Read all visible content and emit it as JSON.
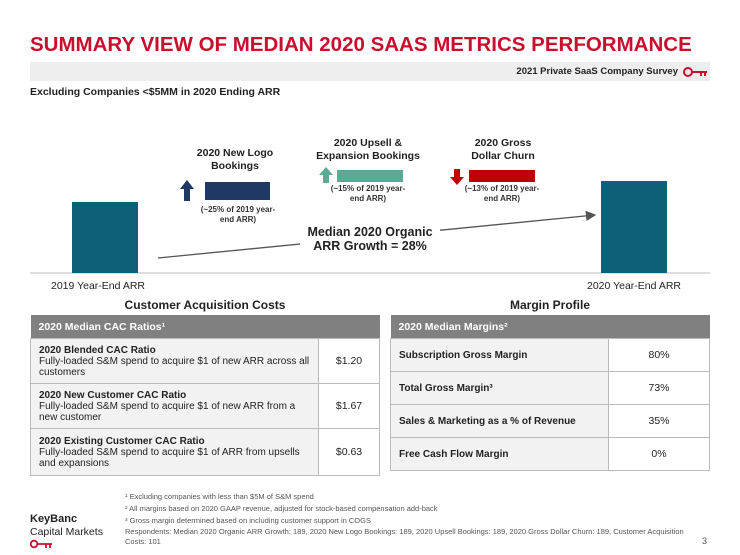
{
  "header": {
    "title": "SUMMARY VIEW OF MEDIAN 2020 SAAS METRICS PERFORMANCE",
    "survey": "2021 Private SaaS Company Survey",
    "subtitle": "Excluding Companies <$5MM in 2020 Ending ARR"
  },
  "bridge": {
    "start_label": "2019 Year-End ARR",
    "end_label": "2020 Year-End ARR",
    "segments": [
      {
        "title": "2020 New Logo Bookings",
        "note": "(~25% of 2019 year-end ARR)"
      },
      {
        "title": "2020 Upsell & Expansion Bookings",
        "note": "(~15% of 2019 year-end ARR)"
      },
      {
        "title": "2020 Gross Dollar Churn",
        "note": "(~13% of 2019 year-end ARR)"
      }
    ],
    "growth_label": "Median 2020 Organic ARR Growth = 28%"
  },
  "cac": {
    "heading": "Customer Acquisition Costs",
    "header": "2020 Median CAC Ratios¹",
    "rows": [
      {
        "title": "2020 Blended CAC Ratio",
        "desc": "Fully-loaded S&M spend to acquire $1 of new ARR across all customers",
        "value": "$1.20"
      },
      {
        "title": "2020 New Customer CAC Ratio",
        "desc": "Fully-loaded S&M spend to acquire $1 of new ARR from a new customer",
        "value": "$1.67"
      },
      {
        "title": "2020 Existing Customer CAC Ratio",
        "desc": "Fully-loaded S&M spend to acquire $1 of ARR from upsells and expansions",
        "value": "$0.63"
      }
    ]
  },
  "margin": {
    "heading": "Margin Profile",
    "header": "2020 Median Margins²",
    "rows": [
      {
        "label": "Subscription Gross Margin",
        "value": "80%"
      },
      {
        "label": "Total Gross Margin³",
        "value": "73%"
      },
      {
        "label": "Sales & Marketing as a % of Revenue",
        "value": "35%"
      },
      {
        "label": "Free Cash Flow Margin",
        "value": "0%"
      }
    ]
  },
  "footnotes": [
    "¹ Excluding companies with less than $5M of S&M spend",
    "² All margins based on 2020 GAAP revenue, adjusted for stock-based compensation add-back",
    "³ Gross margin determined based on including customer support in COGS",
    "Respondents: Median 2020 Organic ARR Growth: 189, 2020 New Logo Bookings: 189, 2020 Upsell Bookings: 189, 2020 Gross Dollar Churn: 189, Customer Acquisition Costs: 101"
  ],
  "logo": {
    "line1": "KeyBanc",
    "line2": "Capital Markets"
  },
  "page": "3"
}
